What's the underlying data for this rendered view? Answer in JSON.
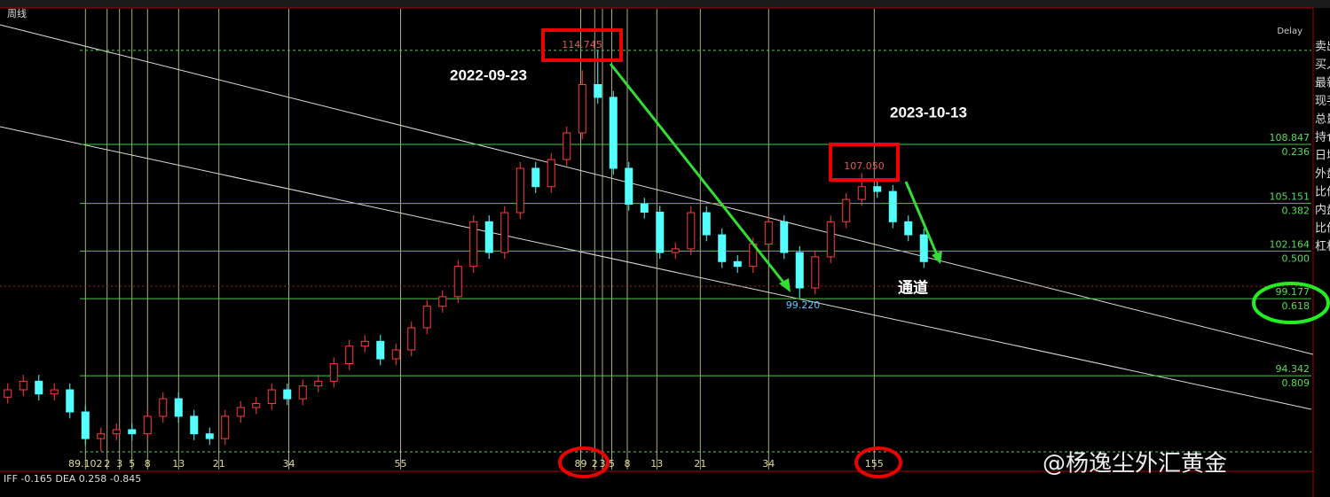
{
  "header": {
    "period": "周线",
    "delay": "Delay"
  },
  "side_panel": [
    "卖出",
    "买入",
    "最新",
    "现手",
    "总量",
    "持仓",
    "日增",
    "外盘",
    "比价",
    "内盘",
    "比价",
    "杠杆"
  ],
  "indicator": "IFF -0.165  DEA 0.258  -0.845",
  "watermark": "@杨逸尘外汇黄金",
  "chart_data": {
    "type": "candlestick",
    "annotations": {
      "peak_date": "2022-09-23",
      "second_date": "2023-10-13",
      "channel": "通道",
      "peak": "114.745",
      "second_peak": "107.050",
      "low": "99.220"
    },
    "ylim": [
      88.46,
      117.35
    ],
    "up_color": "#ff3c3c",
    "down_color": "#54ffff",
    "fib_levels": [
      {
        "value": 108.847,
        "ratio": "0.236"
      },
      {
        "value": 105.151,
        "ratio": "0.382"
      },
      {
        "value": 102.164,
        "ratio": "0.500"
      },
      {
        "value": 99.177,
        "ratio": "0.618"
      },
      {
        "value": 94.342,
        "ratio": "0.809"
      }
    ],
    "peak_line": 114.745,
    "price_line": 99.96,
    "time_zones": [
      {
        "label": "89.102",
        "at": 5.0
      },
      {
        "label": "2",
        "at": 6.4
      },
      {
        "label": "3",
        "at": 7.2
      },
      {
        "label": "5",
        "at": 8.0
      },
      {
        "label": "8",
        "at": 9.0
      },
      {
        "label": "13",
        "at": 11.0
      },
      {
        "label": "21",
        "at": 13.6
      },
      {
        "label": "34",
        "at": 18.1
      },
      {
        "label": "55",
        "at": 25.3
      },
      {
        "label": "89",
        "at": 36.9
      },
      {
        "label": "2",
        "at": 37.8
      },
      {
        "label": "3",
        "at": 38.3
      },
      {
        "label": "5",
        "at": 38.9
      },
      {
        "label": "8",
        "at": 39.9
      },
      {
        "label": "13",
        "at": 41.8
      },
      {
        "label": "21",
        "at": 44.6
      },
      {
        "label": "34",
        "at": 49.0
      },
      {
        "label": "155",
        "at": 55.8
      }
    ],
    "categories": [
      null,
      null,
      null,
      null,
      null,
      null,
      null,
      null,
      null,
      null,
      null,
      null,
      null,
      null,
      null,
      null,
      null,
      null,
      null,
      null,
      null,
      null,
      null,
      null,
      null,
      null,
      null,
      null,
      null,
      null,
      null,
      null,
      null,
      null,
      null,
      null,
      null,
      null,
      null,
      null,
      null,
      null,
      null,
      null,
      null,
      null,
      null,
      null,
      null,
      null,
      null,
      null,
      null,
      null,
      null,
      null,
      null,
      null,
      null,
      null
    ],
    "open": [
      93.0,
      93.46,
      94.0,
      93.2,
      93.46,
      92.07,
      90.4,
      90.7,
      90.96,
      90.7,
      91.8,
      92.9,
      91.8,
      90.7,
      90.4,
      91.8,
      92.35,
      92.6,
      93.46,
      92.9,
      93.7,
      94.0,
      95.1,
      96.2,
      96.5,
      95.4,
      95.96,
      97.35,
      98.7,
      99.3,
      101.2,
      104.0,
      102.07,
      104.57,
      107.35,
      106.2,
      107.9,
      109.57,
      112.6,
      111.8,
      107.35,
      105.1,
      104.6,
      102.07,
      102.3,
      104.57,
      103.18,
      101.5,
      101.2,
      102.6,
      104.0,
      102.07,
      99.85,
      101.8,
      104.0,
      105.4,
      106.2,
      105.9,
      104.0,
      103.18
    ],
    "high": [
      93.86,
      94.4,
      94.4,
      93.86,
      93.86,
      92.47,
      91.1,
      91.36,
      91.36,
      92.2,
      93.3,
      93.3,
      92.2,
      91.1,
      92.2,
      92.75,
      93.0,
      93.86,
      93.86,
      94.1,
      94.4,
      95.5,
      96.6,
      96.9,
      96.9,
      96.36,
      97.75,
      99.1,
      99.7,
      101.6,
      104.4,
      104.4,
      104.97,
      107.75,
      107.75,
      108.3,
      109.97,
      113.5,
      114.745,
      112.2,
      107.75,
      105.5,
      105.0,
      102.7,
      104.97,
      104.97,
      103.58,
      101.9,
      103.0,
      104.4,
      104.4,
      102.47,
      102.2,
      104.4,
      105.8,
      107.05,
      106.6,
      106.3,
      104.4,
      103.58
    ],
    "low": [
      92.6,
      93.06,
      92.8,
      92.8,
      91.67,
      90.0,
      89.6,
      90.3,
      90.3,
      90.3,
      91.4,
      91.4,
      90.3,
      90.0,
      90.0,
      91.4,
      91.95,
      92.2,
      92.5,
      92.5,
      93.3,
      93.6,
      94.7,
      95.8,
      95.0,
      95.0,
      95.56,
      96.95,
      98.3,
      98.9,
      100.8,
      101.67,
      101.67,
      104.17,
      105.8,
      105.8,
      107.5,
      109.17,
      111.4,
      106.95,
      104.7,
      104.2,
      101.67,
      101.67,
      101.9,
      102.78,
      101.1,
      100.8,
      100.8,
      102.2,
      101.67,
      99.22,
      99.45,
      101.4,
      103.6,
      105.0,
      105.5,
      103.6,
      102.78,
      101.1
    ],
    "close": [
      93.46,
      94.0,
      93.2,
      93.46,
      92.07,
      90.4,
      90.7,
      90.96,
      90.7,
      91.8,
      92.9,
      91.8,
      90.7,
      90.4,
      91.8,
      92.35,
      92.6,
      93.46,
      92.9,
      93.7,
      94.0,
      95.1,
      96.2,
      96.5,
      95.4,
      95.96,
      97.35,
      98.7,
      99.3,
      101.2,
      104.0,
      102.07,
      104.57,
      107.35,
      106.2,
      107.9,
      109.57,
      112.6,
      111.8,
      107.35,
      105.1,
      104.6,
      102.07,
      102.3,
      104.57,
      103.18,
      101.5,
      101.2,
      102.6,
      104.0,
      102.07,
      99.85,
      101.8,
      104.0,
      105.4,
      106.2,
      105.9,
      104.0,
      103.18,
      101.5
    ]
  }
}
